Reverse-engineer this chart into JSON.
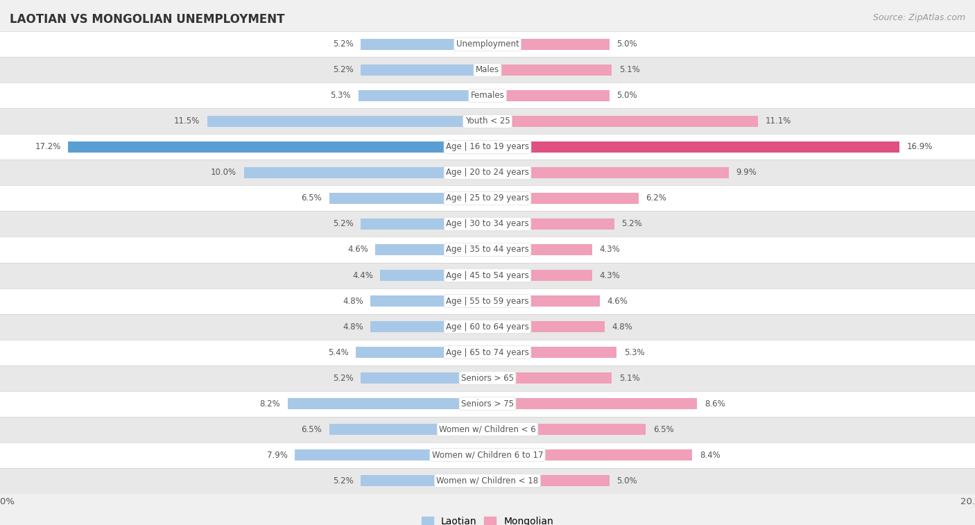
{
  "title": "LAOTIAN VS MONGOLIAN UNEMPLOYMENT",
  "source": "Source: ZipAtlas.com",
  "categories": [
    "Unemployment",
    "Males",
    "Females",
    "Youth < 25",
    "Age | 16 to 19 years",
    "Age | 20 to 24 years",
    "Age | 25 to 29 years",
    "Age | 30 to 34 years",
    "Age | 35 to 44 years",
    "Age | 45 to 54 years",
    "Age | 55 to 59 years",
    "Age | 60 to 64 years",
    "Age | 65 to 74 years",
    "Seniors > 65",
    "Seniors > 75",
    "Women w/ Children < 6",
    "Women w/ Children 6 to 17",
    "Women w/ Children < 18"
  ],
  "laotian": [
    5.2,
    5.2,
    5.3,
    11.5,
    17.2,
    10.0,
    6.5,
    5.2,
    4.6,
    4.4,
    4.8,
    4.8,
    5.4,
    5.2,
    8.2,
    6.5,
    7.9,
    5.2
  ],
  "mongolian": [
    5.0,
    5.1,
    5.0,
    11.1,
    16.9,
    9.9,
    6.2,
    5.2,
    4.3,
    4.3,
    4.6,
    4.8,
    5.3,
    5.1,
    8.6,
    6.5,
    8.4,
    5.0
  ],
  "laotian_color": "#a8c8e8",
  "mongolian_color": "#f0a0b8",
  "laotian_highlight_color": "#5a9fd4",
  "mongolian_highlight_color": "#e05080",
  "highlight_indices": [
    4
  ],
  "bar_height": 0.45,
  "max_val": 20.0,
  "bg_color": "#f0f0f0",
  "row_color_odd": "#ffffff",
  "row_color_even": "#e8e8e8",
  "label_color": "#555555",
  "cat_label_color": "#555555",
  "title_color": "#333333",
  "source_color": "#999999",
  "legend_laotian": "Laotian",
  "legend_mongolian": "Mongolian"
}
